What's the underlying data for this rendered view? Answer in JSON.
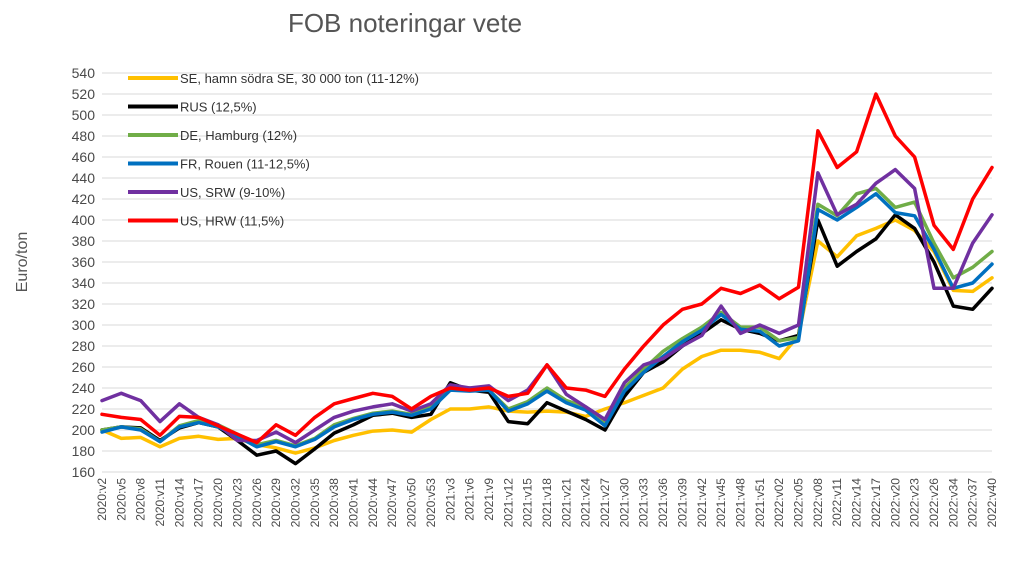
{
  "chart_data": {
    "type": "line",
    "title": "FOB noteringar vete",
    "xlabel": "",
    "ylabel": "Euro/ton",
    "ylim": [
      160,
      540
    ],
    "yticks": [
      160,
      180,
      200,
      220,
      240,
      260,
      280,
      300,
      320,
      340,
      360,
      380,
      400,
      420,
      440,
      460,
      480,
      500,
      520,
      540
    ],
    "grid": true,
    "legend_position": "top-left",
    "categories": [
      "2020:v2",
      "2020:v5",
      "2020:v8",
      "2020:v11",
      "2020:v14",
      "2020:v17",
      "2020:v20",
      "2020:v23",
      "2020:v26",
      "2020:v29",
      "2020:v32",
      "2020:v35",
      "2020:v38",
      "2020:v41",
      "2020:v44",
      "2020:v47",
      "2020:v50",
      "2020:v53",
      "2021:v3",
      "2021:v6",
      "2021:v9",
      "2021:v12",
      "2021:v15",
      "2021:v18",
      "2021:v21",
      "2021:v24",
      "2021:v27",
      "2021:v30",
      "2021:v33",
      "2021:v36",
      "2021:v39",
      "2021:v42",
      "2021:v45",
      "2021:v48",
      "2021:v51",
      "2022:v02",
      "2022:v05",
      "2022:v08",
      "2022:v11",
      "2022:v14",
      "2022:v17",
      "2022:v20",
      "2022:v23",
      "2022:v26",
      "2022:v34",
      "2022:v37",
      "2022:v40"
    ],
    "series": [
      {
        "name": "SE, hamn södra SE, 30 000 ton (11-12%)",
        "color": "#FFC000",
        "values": [
          200,
          192,
          193,
          184,
          192,
          194,
          191,
          192,
          186,
          183,
          178,
          183,
          190,
          195,
          199,
          200,
          198,
          210,
          220,
          220,
          222,
          218,
          217,
          218,
          217,
          213,
          220,
          226,
          233,
          240,
          258,
          270,
          276,
          276,
          274,
          268,
          290,
          380,
          365,
          385,
          392,
          400,
          390,
          370,
          333,
          332,
          345
        ]
      },
      {
        "name": "RUS (12,5%)",
        "color": "#000000",
        "values": [
          200,
          203,
          202,
          190,
          202,
          207,
          203,
          190,
          176,
          180,
          168,
          182,
          197,
          205,
          214,
          216,
          212,
          215,
          245,
          238,
          236,
          208,
          206,
          226,
          218,
          210,
          200,
          232,
          255,
          265,
          280,
          292,
          305,
          296,
          292,
          285,
          290,
          400,
          356,
          370,
          382,
          405,
          392,
          360,
          318,
          315,
          335
        ]
      },
      {
        "name": "DE, Hamburg (12%)",
        "color": "#70AD47",
        "values": [
          200,
          203,
          201,
          189,
          204,
          209,
          205,
          196,
          186,
          190,
          185,
          192,
          205,
          211,
          216,
          218,
          215,
          222,
          241,
          240,
          238,
          220,
          227,
          240,
          228,
          222,
          208,
          240,
          258,
          275,
          287,
          298,
          312,
          298,
          298,
          285,
          288,
          415,
          404,
          425,
          430,
          412,
          417,
          378,
          345,
          355,
          370
        ]
      },
      {
        "name": "FR, Rouen (11-12,5%)",
        "color": "#0070C0",
        "values": [
          198,
          203,
          200,
          189,
          203,
          207,
          203,
          194,
          184,
          189,
          184,
          191,
          203,
          210,
          215,
          217,
          214,
          220,
          238,
          237,
          238,
          218,
          225,
          237,
          226,
          219,
          204,
          237,
          255,
          270,
          284,
          295,
          310,
          296,
          294,
          280,
          285,
          410,
          400,
          412,
          425,
          407,
          404,
          372,
          335,
          340,
          358
        ]
      },
      {
        "name": "US, SRW (9-10%)",
        "color": "#7030A0",
        "values": [
          228,
          235,
          228,
          208,
          225,
          212,
          205,
          190,
          190,
          198,
          188,
          200,
          212,
          218,
          222,
          225,
          218,
          225,
          243,
          240,
          242,
          228,
          238,
          262,
          234,
          222,
          210,
          245,
          262,
          268,
          280,
          290,
          318,
          292,
          300,
          292,
          300,
          445,
          405,
          415,
          435,
          448,
          430,
          335,
          335,
          378,
          405
        ]
      },
      {
        "name": "US, HRW (11,5%)",
        "color": "#FF0000",
        "values": [
          215,
          212,
          210,
          195,
          213,
          212,
          204,
          196,
          188,
          205,
          195,
          212,
          225,
          230,
          235,
          232,
          220,
          232,
          240,
          238,
          240,
          232,
          235,
          262,
          240,
          238,
          232,
          258,
          280,
          300,
          315,
          320,
          335,
          330,
          338,
          325,
          336,
          485,
          450,
          465,
          520,
          480,
          460,
          395,
          372,
          420,
          450
        ]
      }
    ]
  }
}
